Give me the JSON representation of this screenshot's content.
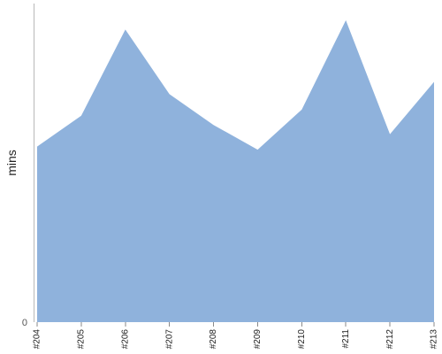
{
  "chart_data": {
    "type": "area",
    "categories": [
      "#204",
      "#205",
      "#206",
      "#207",
      "#208",
      "#209",
      "#210",
      "#211",
      "#212",
      "#213"
    ],
    "series": [
      {
        "values": [
          57,
          67,
          95,
          74,
          64,
          56,
          69,
          98,
          61,
          78
        ]
      }
    ],
    "title": "",
    "xlabel": "",
    "ylabel": "mins",
    "ylim": [
      0,
      104
    ],
    "y_tick_labels": [
      "0"
    ],
    "grid": false,
    "legend": "none",
    "colors": {
      "area": "#8fb2dc",
      "axis": "#b8b8b8",
      "tick": "#8a8a8a"
    }
  }
}
